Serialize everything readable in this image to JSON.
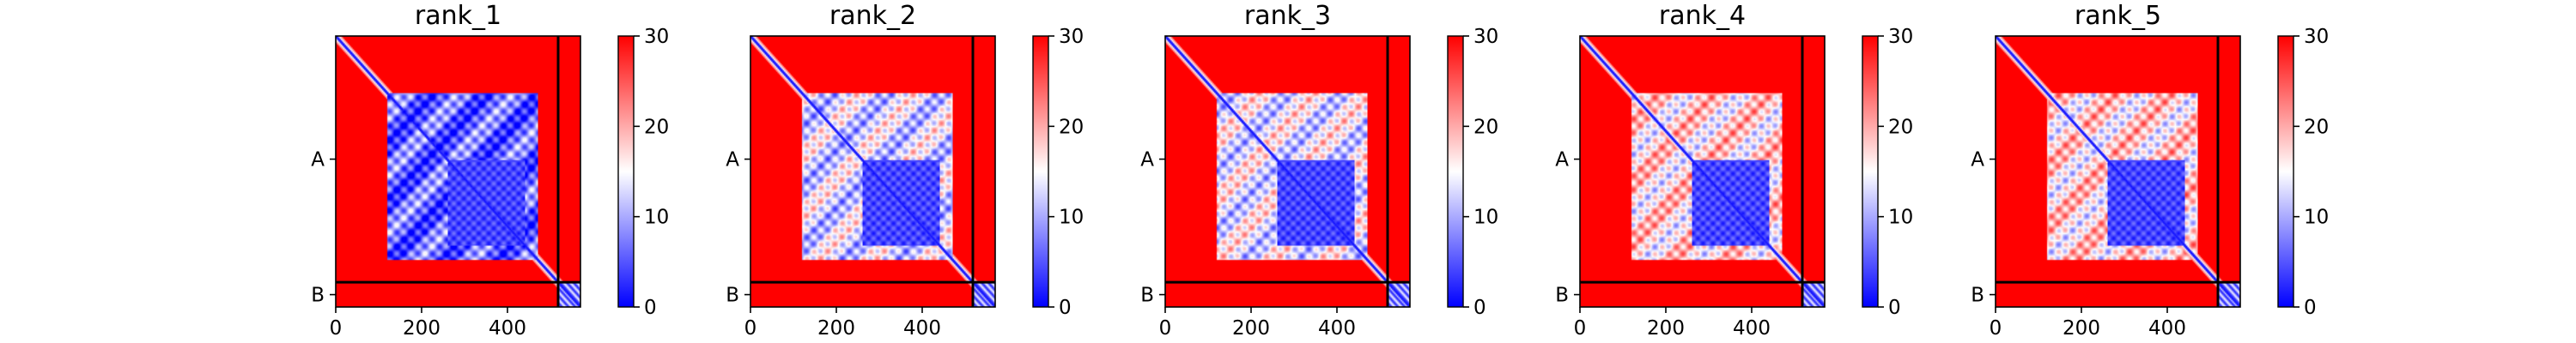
{
  "figure": {
    "background": "#ffffff",
    "axis_color": "#000000"
  },
  "chart_data": [
    {
      "type": "heatmap",
      "title": "rank_1",
      "xlabel": "",
      "ylabel": "",
      "xlim": [
        0,
        570
      ],
      "x_ticks": [
        0,
        200,
        400
      ],
      "y_tick_labels": [
        "A",
        "B"
      ],
      "chain_boundary": 518,
      "colorbar": {
        "colormap": "bwr",
        "vmin": 0,
        "vmax": 30,
        "ticks": [
          0,
          10,
          20,
          30
        ]
      },
      "colors": {
        "low": "#0000ff",
        "mid": "#ffffff",
        "high": "#ff0000"
      },
      "regions": {
        "domain": [
          118,
          470
        ],
        "core": [
          260,
          440
        ],
        "pae_domain": 6,
        "pae_core": 4,
        "pae_background": 30
      }
    },
    {
      "type": "heatmap",
      "title": "rank_2",
      "xlabel": "",
      "ylabel": "",
      "xlim": [
        0,
        570
      ],
      "x_ticks": [
        0,
        200,
        400
      ],
      "y_tick_labels": [
        "A",
        "B"
      ],
      "chain_boundary": 518,
      "colorbar": {
        "colormap": "bwr",
        "vmin": 0,
        "vmax": 30,
        "ticks": [
          0,
          10,
          20,
          30
        ]
      },
      "colors": {
        "low": "#0000ff",
        "mid": "#ffffff",
        "high": "#ff0000"
      },
      "regions": {
        "domain": [
          118,
          470
        ],
        "core": [
          260,
          440
        ],
        "pae_domain": 13,
        "pae_core": 4,
        "pae_background": 30
      }
    },
    {
      "type": "heatmap",
      "title": "rank_3",
      "xlabel": "",
      "ylabel": "",
      "xlim": [
        0,
        570
      ],
      "x_ticks": [
        0,
        200,
        400
      ],
      "y_tick_labels": [
        "A",
        "B"
      ],
      "chain_boundary": 518,
      "colorbar": {
        "colormap": "bwr",
        "vmin": 0,
        "vmax": 30,
        "ticks": [
          0,
          10,
          20,
          30
        ]
      },
      "colors": {
        "low": "#0000ff",
        "mid": "#ffffff",
        "high": "#ff0000"
      },
      "regions": {
        "domain": [
          118,
          470
        ],
        "core": [
          260,
          440
        ],
        "pae_domain": 14,
        "pae_core": 4,
        "pae_background": 30
      }
    },
    {
      "type": "heatmap",
      "title": "rank_4",
      "xlabel": "",
      "ylabel": "",
      "xlim": [
        0,
        570
      ],
      "x_ticks": [
        0,
        200,
        400
      ],
      "y_tick_labels": [
        "A",
        "B"
      ],
      "chain_boundary": 518,
      "colorbar": {
        "colormap": "bwr",
        "vmin": 0,
        "vmax": 30,
        "ticks": [
          0,
          10,
          20,
          30
        ]
      },
      "colors": {
        "low": "#0000ff",
        "mid": "#ffffff",
        "high": "#ff0000"
      },
      "regions": {
        "domain": [
          118,
          470
        ],
        "core": [
          260,
          440
        ],
        "pae_domain": 17,
        "pae_core": 4,
        "pae_background": 30
      }
    },
    {
      "type": "heatmap",
      "title": "rank_5",
      "xlabel": "",
      "ylabel": "",
      "xlim": [
        0,
        570
      ],
      "x_ticks": [
        0,
        200,
        400
      ],
      "y_tick_labels": [
        "A",
        "B"
      ],
      "chain_boundary": 518,
      "colorbar": {
        "colormap": "bwr",
        "vmin": 0,
        "vmax": 30,
        "ticks": [
          0,
          10,
          20,
          30
        ]
      },
      "colors": {
        "low": "#0000ff",
        "mid": "#ffffff",
        "high": "#ff0000"
      },
      "regions": {
        "domain": [
          118,
          470
        ],
        "core": [
          260,
          440
        ],
        "pae_domain": 17,
        "pae_core": 4,
        "pae_background": 30
      }
    }
  ]
}
